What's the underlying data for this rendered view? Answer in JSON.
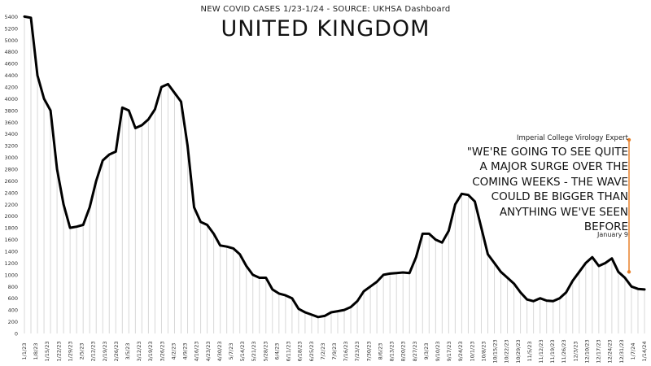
{
  "chart_data": {
    "type": "area",
    "title": "UNITED KINGDOM",
    "subtitle": "NEW COVID CASES 1/23-1/24 - SOURCE: UKHSA Dashboard",
    "xlabel": "",
    "ylabel": "",
    "ylim": [
      0,
      5600
    ],
    "ytick_step": 200,
    "grid": false,
    "x_tick_labels": [
      "1/1/23",
      "1/8/23",
      "1/15/23",
      "1/22/23",
      "1/29/23",
      "2/5/23",
      "2/12/23",
      "2/19/23",
      "2/26/23",
      "3/5/23",
      "3/12/23",
      "3/19/23",
      "3/26/23",
      "4/2/23",
      "4/9/23",
      "4/16/23",
      "4/23/23",
      "4/30/23",
      "5/7/23",
      "5/14/23",
      "5/21/23",
      "5/28/23",
      "6/4/23",
      "6/11/23",
      "6/18/23",
      "6/25/23",
      "7/2/23",
      "7/9/23",
      "7/16/23",
      "7/23/23",
      "7/30/23",
      "8/6/23",
      "8/13/23",
      "8/20/23",
      "8/27/23",
      "9/3/23",
      "9/10/23",
      "9/17/23",
      "9/24/23",
      "10/1/23",
      "10/8/23",
      "10/15/23",
      "10/22/23",
      "10/29/23",
      "11/5/23",
      "11/12/23",
      "11/19/23",
      "11/26/23",
      "12/3/23",
      "12/10/23",
      "12/17/23",
      "12/24/23",
      "12/31/23",
      "1/7/24",
      "1/14/24"
    ],
    "series": [
      {
        "values": [
          5400,
          5380,
          4400,
          4000,
          3800,
          2800,
          2200,
          1800,
          1820,
          1850,
          2150,
          2600,
          2950,
          3050,
          3100,
          3850,
          3800,
          3500,
          3550,
          3650,
          3820,
          4200,
          4250,
          4100,
          3950,
          3200,
          2150,
          1900,
          1850,
          1700,
          1500,
          1480,
          1450,
          1350,
          1150,
          1000,
          950,
          950,
          750,
          680,
          650,
          600,
          420,
          360,
          320,
          280,
          300,
          360,
          380,
          400,
          450,
          550,
          720,
          800,
          880,
          1000,
          1020,
          1030,
          1040,
          1030,
          1300,
          1700,
          1700,
          1600,
          1550,
          1750,
          2200,
          2380,
          2360,
          2250,
          1800,
          1350,
          1200,
          1050,
          950,
          850,
          700,
          580,
          550,
          600,
          560,
          550,
          600,
          700,
          900,
          1050,
          1200,
          1300,
          1150,
          1200,
          1280,
          1050,
          950,
          800,
          760,
          750
        ]
      }
    ],
    "annotation": {
      "source": "Imperial College Virology Expert",
      "quote_lines": [
        "\"WE'RE GOING TO SEE QUITE",
        "A MAJOR SURGE OVER THE",
        "COMING WEEKS - THE WAVE",
        "COULD BE BIGGER THAN",
        "ANYTHING WE'VE SEEN",
        "BEFORE"
      ],
      "date": "January 9",
      "x_index": 92,
      "y_top": 3300,
      "y_bottom": 1050,
      "color": "#e8812a"
    },
    "line_color": "#000000",
    "fill_color": "#d8d8d8"
  }
}
